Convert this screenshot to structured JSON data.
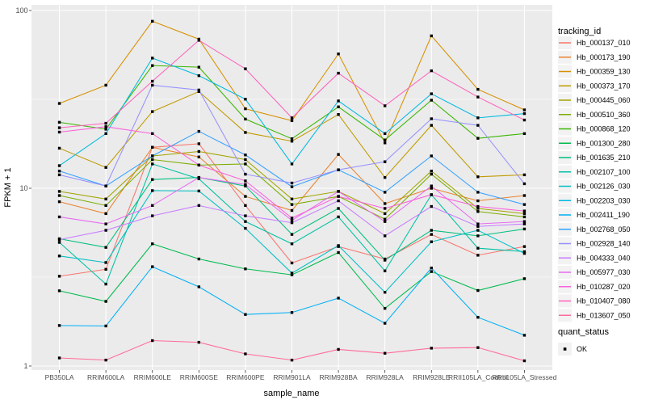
{
  "figure": {
    "background": "#FFFFFF",
    "panel_background": "#EBEBEB",
    "gridline_color": "#FFFFFF",
    "tick_color": "#333333",
    "tick_label_color": "#4D4D4D",
    "axis_title_color": "#000000",
    "legend_key_fill": "#F2F2F2",
    "marker_color": "#000000"
  },
  "legend": {
    "tracking_title": "tracking_id",
    "quant_title": "quant_status",
    "quant_ok_label": "OK"
  },
  "chart_data": {
    "type": "line",
    "title": "",
    "xlabel": "sample_name",
    "ylabel": "FPKM + 1",
    "y_scale": "log10",
    "y_ticks": [
      1,
      10,
      100
    ],
    "y_minor_ticks": [
      3.1623,
      31.623
    ],
    "ylim": [
      0.95,
      108
    ],
    "grid": true,
    "legend_position": "right",
    "point_marker": {
      "shape": "square",
      "color": "#000000",
      "status_label": "OK"
    },
    "categories": [
      "PB350LA",
      "RRIM600LA",
      "RRIM600LE",
      "RRIM600SE",
      "RRIM600PE",
      "RRIM901LA",
      "RRIM928BA",
      "RRIM928LA",
      "RRIM928LE",
      "RRII105LA_Control",
      "RRII105LA_Stressed"
    ],
    "series": [
      {
        "name": "Hb_000137_010",
        "color": "#F8766D",
        "values": [
          3.2,
          3.5,
          17.0,
          17.8,
          8.0,
          3.8,
          4.7,
          4.0,
          5.5,
          4.2,
          4.7
        ]
      },
      {
        "name": "Hb_000173_190",
        "color": "#EA8331",
        "values": [
          8.4,
          7.2,
          17.0,
          15.0,
          9.0,
          7.5,
          15.5,
          8.2,
          10.0,
          8.5,
          9.1
        ]
      },
      {
        "name": "Hb_000359_130",
        "color": "#D89000",
        "values": [
          30,
          38,
          87,
          69,
          28,
          24,
          57,
          18,
          72,
          36,
          27.6
        ]
      },
      {
        "name": "Hb_000373_170",
        "color": "#C09B00",
        "values": [
          16.8,
          13.1,
          27,
          35,
          20.6,
          18.4,
          26,
          11.5,
          22.6,
          11.6,
          11.9
        ]
      },
      {
        "name": "Hb_000445_060",
        "color": "#A3A500",
        "values": [
          9.6,
          8.7,
          15.2,
          16.1,
          14.5,
          8.7,
          9.6,
          7.2,
          12.5,
          7.7,
          7.2
        ]
      },
      {
        "name": "Hb_000510_360",
        "color": "#7CAE00",
        "values": [
          9.1,
          8.0,
          14.5,
          13.5,
          13.7,
          8.1,
          9.0,
          6.7,
          12.0,
          7.4,
          6.9
        ]
      },
      {
        "name": "Hb_000868_120",
        "color": "#39B600",
        "values": [
          23.5,
          21.5,
          49,
          48,
          24.5,
          19.0,
          28.7,
          18.7,
          31.3,
          19.1,
          20.3
        ]
      },
      {
        "name": "Hb_001300_280",
        "color": "#00BB4E",
        "values": [
          2.65,
          2.31,
          4.87,
          4.0,
          3.52,
          3.26,
          4.35,
          2.11,
          3.4,
          2.66,
          3.1
        ]
      },
      {
        "name": "Hb_001635_210",
        "color": "#00BF7D",
        "values": [
          5.2,
          4.65,
          11.2,
          11.5,
          10.3,
          5.5,
          7.7,
          3.94,
          5.8,
          5.4,
          5.9
        ]
      },
      {
        "name": "Hb_002107_100",
        "color": "#00C1A3",
        "values": [
          4.96,
          2.89,
          13.7,
          11.3,
          6.5,
          4.87,
          6.9,
          3.43,
          9.2,
          4.6,
          4.4
        ]
      },
      {
        "name": "Hb_002126_030",
        "color": "#00BFC4",
        "values": [
          4.16,
          3.82,
          9.7,
          9.65,
          5.95,
          3.33,
          4.76,
          2.6,
          5.0,
          5.8,
          4.3
        ]
      },
      {
        "name": "Hb_002203_030",
        "color": "#00BAE0",
        "values": [
          13.4,
          20.3,
          54,
          43,
          31.7,
          13.7,
          31,
          20.3,
          34,
          24.9,
          26.3
        ]
      },
      {
        "name": "Hb_002411_190",
        "color": "#00B0F6",
        "values": [
          1.69,
          1.68,
          3.62,
          2.79,
          1.95,
          2.0,
          2.41,
          1.74,
          3.56,
          1.88,
          1.49
        ]
      },
      {
        "name": "Hb_002768_050",
        "color": "#35A2FF",
        "values": [
          12.5,
          10.3,
          15.2,
          20.9,
          15.4,
          10.2,
          12.7,
          9.5,
          15.2,
          9.5,
          8.1
        ]
      },
      {
        "name": "Hb_002928_140",
        "color": "#9590FF",
        "values": [
          11.9,
          10.3,
          38,
          35.7,
          12.0,
          10.7,
          12.7,
          14.1,
          24.6,
          22.6,
          10.6
        ]
      },
      {
        "name": "Hb_004333_040",
        "color": "#C77CFF",
        "values": [
          5.14,
          5.8,
          7.0,
          8.0,
          7.0,
          6.4,
          8.5,
          5.4,
          7.9,
          6.1,
          6.3
        ]
      },
      {
        "name": "Hb_005977_030",
        "color": "#E76BF3",
        "values": [
          6.9,
          6.3,
          8.0,
          11.5,
          10.5,
          6.6,
          9.6,
          6.5,
          10.3,
          6.3,
          6.5
        ]
      },
      {
        "name": "Hb_010287_020",
        "color": "#FA62DB",
        "values": [
          20.7,
          22.2,
          20.3,
          13.5,
          11.0,
          6.8,
          9.0,
          7.7,
          9.2,
          7.9,
          7.45
        ]
      },
      {
        "name": "Hb_010407_080",
        "color": "#FF62BC",
        "values": [
          21.9,
          23.2,
          40,
          68,
          47,
          24.9,
          44.4,
          29.1,
          45.8,
          32.6,
          24.2
        ]
      },
      {
        "name": "Hb_013607_050",
        "color": "#FF6A98",
        "values": [
          1.11,
          1.08,
          1.39,
          1.36,
          1.17,
          1.08,
          1.24,
          1.18,
          1.26,
          1.27,
          1.07
        ]
      }
    ]
  }
}
